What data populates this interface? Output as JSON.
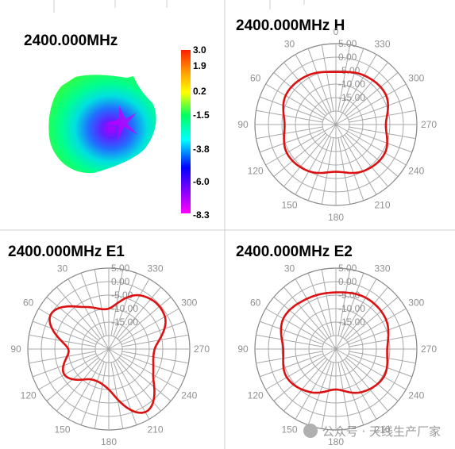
{
  "chart_data": [
    {
      "type": "heatmap",
      "title": "2400.000MHz",
      "colorbar": {
        "tick_labels": [
          "3.0",
          "1.9",
          "0.2",
          "-1.5",
          "-3.8",
          "-6.0",
          "-8.3"
        ],
        "range": [
          -8.3,
          3.0
        ],
        "colors": [
          "#ff2000",
          "#ffff00",
          "#00ff60",
          "#00ffff",
          "#0000ff",
          "#8000ff",
          "#ff00ff"
        ]
      }
    },
    {
      "type": "polar",
      "title": "2400.000MHz  H",
      "radial_tick_labels": [
        "5.00",
        "0.00",
        "-5.00",
        "-10.00",
        "-15.00"
      ],
      "angle_tick_labels": [
        "0",
        "30",
        "60",
        "90",
        "120",
        "150",
        "180",
        "210",
        "240",
        "270",
        "300",
        "330"
      ],
      "r_range": [
        -25,
        5
      ],
      "angles_deg": [
        0,
        30,
        60,
        90,
        120,
        150,
        180,
        210,
        240,
        270,
        300,
        330,
        360
      ],
      "values_db": [
        -5.5,
        -4.0,
        -3.5,
        -6.0,
        -4.0,
        -5.0,
        -7.5,
        -5.0,
        -4.0,
        -6.5,
        -3.5,
        -4.0,
        -5.5
      ],
      "line_color": "#dd1111"
    },
    {
      "type": "polar",
      "title": "2400.000MHz  E1",
      "radial_tick_labels": [
        "5.00",
        "0.00",
        "-5.00",
        "-10.00",
        "-15.00"
      ],
      "angle_tick_labels": [
        "30",
        "60",
        "90",
        "120",
        "150",
        "180",
        "210",
        "240",
        "270",
        "300",
        "330"
      ],
      "r_range": [
        -25,
        5
      ],
      "angles_deg": [
        0,
        30,
        60,
        90,
        120,
        150,
        180,
        210,
        240,
        270,
        300,
        330,
        360
      ],
      "values_db": [
        -10.0,
        -7.0,
        0.0,
        -10.0,
        -6.0,
        -12.0,
        -10.0,
        2.0,
        -6.0,
        -8.0,
        -1.0,
        -2.0,
        -10.0
      ],
      "line_color": "#dd1111"
    },
    {
      "type": "polar",
      "title": "2400.000MHz  E2",
      "radial_tick_labels": [
        "5.00",
        "0.00",
        "-5.00",
        "-10.00",
        "-15.00"
      ],
      "angle_tick_labels": [
        "30",
        "60",
        "90",
        "120",
        "150",
        "180",
        "210",
        "240",
        "270",
        "300",
        "330"
      ],
      "r_range": [
        -25,
        5
      ],
      "angles_deg": [
        0,
        30,
        60,
        90,
        120,
        150,
        180,
        210,
        240,
        270,
        300,
        330,
        360
      ],
      "values_db": [
        -4.0,
        -3.5,
        -2.5,
        -5.5,
        -4.0,
        -6.5,
        -10.0,
        -6.5,
        -4.5,
        -6.0,
        -3.5,
        -3.0,
        -4.0
      ],
      "line_color": "#dd1111"
    }
  ],
  "watermark": "公众号 · 天线生产厂家"
}
